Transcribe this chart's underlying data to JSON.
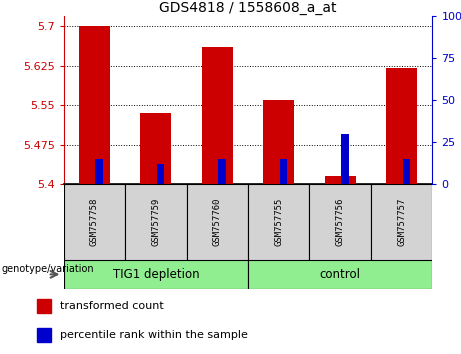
{
  "title": "GDS4818 / 1558608_a_at",
  "samples": [
    "GSM757758",
    "GSM757759",
    "GSM757760",
    "GSM757755",
    "GSM757756",
    "GSM757757"
  ],
  "red_values": [
    5.7,
    5.535,
    5.66,
    5.56,
    5.415,
    5.62
  ],
  "blue_percentiles": [
    15,
    12,
    15,
    15,
    30,
    15
  ],
  "y_min": 5.4,
  "y_max": 5.72,
  "y_ticks_left": [
    5.4,
    5.475,
    5.55,
    5.625,
    5.7
  ],
  "y_ticks_right": [
    0,
    25,
    50,
    75,
    100
  ],
  "left_tick_color": "#cc0000",
  "right_tick_color": "#0000cc",
  "bar_color_red": "#cc0000",
  "bar_color_blue": "#0000cc",
  "base_value": 5.4,
  "bar_width": 0.5,
  "blue_bar_width": 0.12,
  "legend_red": "transformed count",
  "legend_blue": "percentile rank within the sample",
  "genotype_label": "genotype/variation",
  "group1_label": "TIG1 depletion",
  "group2_label": "control",
  "group_color": "#90ee90",
  "label_box_color": "#d3d3d3"
}
